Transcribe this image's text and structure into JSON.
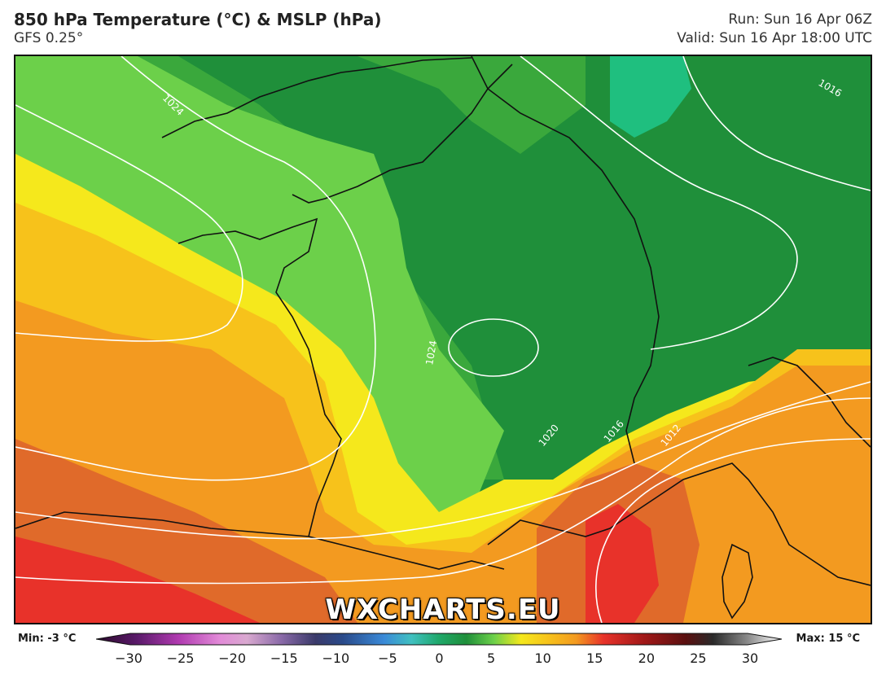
{
  "header": {
    "title": "850 hPa Temperature (°C) & MSLP (hPa)",
    "model": "GFS 0.25°",
    "run": "Run: Sun 16 Apr 06Z",
    "valid": "Valid: Sun 16 Apr 18:00 UTC"
  },
  "map": {
    "watermark": "WXCHARTS.EU",
    "isobar_labels": [
      "1024",
      "1016",
      "1024",
      "1020",
      "1016",
      "1012"
    ],
    "colors": {
      "dark_green": "#1f8f3a",
      "green": "#3aa83c",
      "light_green": "#6cd04a",
      "yellow": "#f5e81c",
      "gold": "#f7c21b",
      "orange": "#f39a20",
      "red_orange": "#e06a2a",
      "red": "#e8322a",
      "teal": "#1fbf7f",
      "isobar": "#ffffff",
      "coast": "#111111"
    }
  },
  "legend": {
    "min_label": "Min: -3 °C",
    "max_label": "Max: 15 °C",
    "ticks": [
      "−30",
      "−25",
      "−20",
      "−15",
      "−10",
      "−5",
      "0",
      "5",
      "10",
      "15",
      "20",
      "25",
      "30"
    ]
  }
}
